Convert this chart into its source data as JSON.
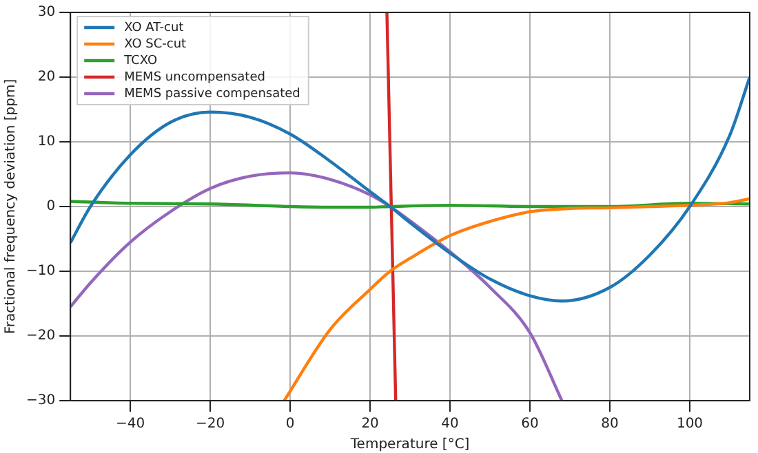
{
  "chart_data": {
    "type": "line",
    "xlabel": "Temperature [°C]",
    "ylabel": "Fractional frequency deviation [ppm]",
    "xlim": [
      -55,
      115
    ],
    "ylim": [
      -30,
      30
    ],
    "xticks": [
      -40,
      -20,
      0,
      20,
      40,
      60,
      80,
      100
    ],
    "yticks": [
      -30,
      -20,
      -10,
      0,
      10,
      20,
      30
    ],
    "grid": true,
    "legend": "top left",
    "marker": "none",
    "line_style": "solid",
    "series": [
      {
        "name": "XO AT-cut",
        "color": "#1f77b4",
        "x": [
          -55,
          -50,
          -40,
          -30,
          -20,
          -10,
          0,
          10,
          20,
          25,
          30,
          40,
          50,
          60,
          68,
          80,
          90,
          100,
          110,
          115
        ],
        "values": [
          -5.6,
          0,
          8,
          13,
          14.6,
          13.8,
          11.2,
          7,
          2.3,
          0,
          -2.5,
          -7.2,
          -11.2,
          -13.8,
          -14.6,
          -12.5,
          -7.5,
          0,
          11,
          20
        ]
      },
      {
        "name": "XO SC-cut",
        "color": "#ff7f0e",
        "x": [
          -1.5,
          10,
          20,
          25,
          30,
          40,
          50,
          60,
          70,
          80,
          90,
          100,
          110,
          115
        ],
        "values": [
          -30,
          -19,
          -12.8,
          -10,
          -8,
          -4.5,
          -2.3,
          -0.8,
          -0.3,
          -0.2,
          0,
          0.2,
          0.6,
          1.2
        ]
      },
      {
        "name": "TCXO",
        "color": "#2ca02c",
        "x": [
          -55,
          -40,
          -20,
          0,
          10,
          20,
          25,
          40,
          60,
          80,
          100,
          115
        ],
        "values": [
          0.8,
          0.5,
          0.4,
          0,
          -0.1,
          -0.1,
          0,
          0.2,
          0,
          0,
          0.5,
          0.4
        ]
      },
      {
        "name": "MEMS uncompensated",
        "color": "#d62728",
        "x": [
          24.2,
          25.3,
          26.4
        ],
        "values": [
          30,
          0,
          -30
        ]
      },
      {
        "name": "MEMS passive compensated",
        "color": "#9467bd",
        "x": [
          -55,
          -50,
          -40,
          -30,
          -20,
          -10,
          0,
          10,
          20,
          25,
          30,
          40,
          50,
          60,
          68
        ],
        "values": [
          -15.5,
          -11.8,
          -5.5,
          -0.8,
          2.8,
          4.7,
          5.2,
          4.2,
          1.8,
          0,
          -2.2,
          -7,
          -12.5,
          -19.5,
          -30
        ]
      }
    ]
  }
}
